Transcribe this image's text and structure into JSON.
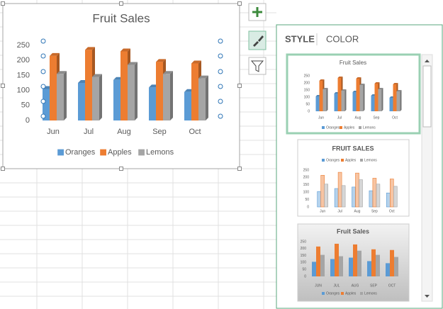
{
  "chart_data": [
    {
      "type": "bar",
      "title": "Fruit Sales",
      "categories": [
        "Jun",
        "Jul",
        "Aug",
        "Sep",
        "Oct"
      ],
      "series": [
        {
          "name": "Oranges",
          "color": "#5b9bd5",
          "values": [
            105,
            125,
            135,
            110,
            95
          ]
        },
        {
          "name": "Apples",
          "color": "#ed7d31",
          "values": [
            215,
            235,
            230,
            195,
            190
          ]
        },
        {
          "name": "Lemons",
          "color": "#a5a5a5",
          "values": [
            155,
            145,
            185,
            155,
            140
          ]
        }
      ],
      "ylim": [
        0,
        250
      ],
      "yticks": [
        0,
        50,
        100,
        150,
        200,
        250
      ],
      "legend": "bottom"
    },
    {
      "type": "bar",
      "title": "Fruit Sales",
      "categories": [
        "Jun",
        "Jul",
        "Aug",
        "Sep",
        "Oct"
      ],
      "series": [
        {
          "name": "Oranges",
          "color": "#5b9bd5",
          "values": [
            105,
            125,
            135,
            110,
            95
          ]
        },
        {
          "name": "Apples",
          "color": "#ed7d31",
          "values": [
            215,
            235,
            230,
            195,
            190
          ]
        },
        {
          "name": "Lemons",
          "color": "#a5a5a5",
          "values": [
            155,
            145,
            185,
            155,
            140
          ]
        }
      ],
      "ylim": [
        0,
        250
      ],
      "yticks": [
        0,
        50,
        100,
        150,
        200,
        250
      ],
      "legend": "bottom"
    },
    {
      "type": "bar",
      "title": "FRUIT SALES",
      "categories": [
        "Jun",
        "Jul",
        "Aug",
        "Sep",
        "Oct"
      ],
      "series": [
        {
          "name": "Oranges",
          "color": "#5b9bd5",
          "values": [
            105,
            125,
            135,
            110,
            95
          ]
        },
        {
          "name": "Apples",
          "color": "#ed7d31",
          "values": [
            215,
            235,
            230,
            195,
            190
          ]
        },
        {
          "name": "Lemons",
          "color": "#a5a5a5",
          "values": [
            155,
            145,
            185,
            155,
            140
          ]
        }
      ],
      "ylim": [
        0,
        250
      ],
      "yticks": [
        0,
        50,
        100,
        150,
        200,
        250
      ],
      "legend": "top"
    },
    {
      "type": "bar",
      "title": "Fruit Sales",
      "categories": [
        "JUN",
        "JUL",
        "AUG",
        "SEP",
        "OCT"
      ],
      "series": [
        {
          "name": "Oranges",
          "color": "#5b9bd5",
          "values": [
            105,
            125,
            135,
            110,
            95
          ]
        },
        {
          "name": "Apples",
          "color": "#ed7d31",
          "values": [
            215,
            235,
            230,
            195,
            190
          ]
        },
        {
          "name": "Lemons",
          "color": "#a5a5a5",
          "values": [
            155,
            145,
            185,
            155,
            140
          ]
        }
      ],
      "ylim": [
        0,
        250
      ],
      "yticks": [
        0,
        50,
        100,
        150,
        200,
        250
      ],
      "legend": "bottom"
    }
  ],
  "style_pane": {
    "tabs": [
      "STYLE",
      "COLOR"
    ]
  }
}
